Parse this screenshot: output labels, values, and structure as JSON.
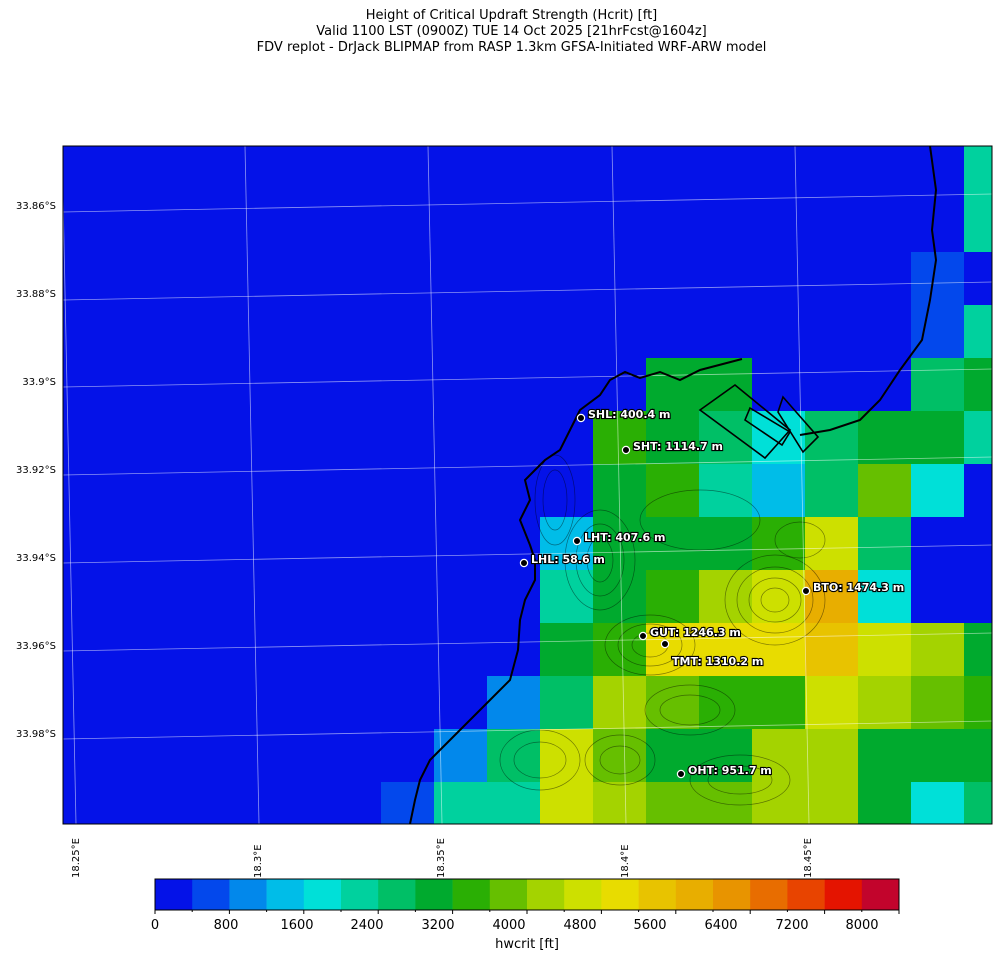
{
  "titles": {
    "line1": "Height of Critical Updraft Strength (Hcrit) [ft]",
    "line2": "Valid 1100 LST (0900Z) TUE 14 Oct 2025 [21hrFcst@1604z]",
    "line3": "FDV replot - DrJack BLIPMAP from RASP 1.3km GFSA-Initiated WRF-ARW model"
  },
  "axes": {
    "lat_labels": [
      "33.86°S",
      "33.88°S",
      "33.9°S",
      "33.92°S",
      "33.94°S",
      "33.96°S",
      "33.98°S"
    ],
    "lon_labels": [
      "18.25°E",
      "18.3°E",
      "18.35°E",
      "18.4°E",
      "18.45°E"
    ]
  },
  "colorbar": {
    "label": "hwcrit [ft]",
    "tick_labels": [
      "0",
      "800",
      "1600",
      "2400",
      "3200",
      "4000",
      "4800",
      "5600",
      "6400",
      "7200",
      "8000"
    ],
    "colors": [
      "#0412e8",
      "#0348ec",
      "#0288eb",
      "#00bde8",
      "#00e0d8",
      "#00d19e",
      "#00bf66",
      "#00aa2e",
      "#2aaf04",
      "#66bf00",
      "#a4d300",
      "#cde000",
      "#e8dc00",
      "#e8c300",
      "#e8ae00",
      "#e89400",
      "#e86d00",
      "#e84400",
      "#e41400",
      "#c2042c"
    ]
  },
  "stations": [
    {
      "label": "SHL: 400.4 m"
    },
    {
      "label": "SHT: 1114.7 m"
    },
    {
      "label": "LHT: 407.6 m"
    },
    {
      "label": "LHL: 58.6 m"
    },
    {
      "label": "BTO: 1474.3 m"
    },
    {
      "label": "GUT: 1246.3 m"
    },
    {
      "label": "TMT: 1310.2 m"
    },
    {
      "label": "OHT: 951.7 m"
    }
  ],
  "chart_data": {
    "type": "heatmap",
    "variable": "hwcrit [ft]",
    "color_levels_ft": [
      0,
      400,
      800,
      1200,
      1600,
      2000,
      2400,
      2800,
      3200,
      3600,
      4000,
      4400,
      4800,
      5200,
      5600,
      6000,
      6400,
      6800,
      7200,
      7600,
      8000
    ],
    "grid_cells_level_index": [
      [
        0,
        0,
        0,
        0,
        0,
        0,
        0,
        0,
        0,
        0,
        0,
        0,
        0,
        0,
        0,
        0,
        0,
        5,
        5
      ],
      [
        0,
        0,
        0,
        0,
        0,
        0,
        0,
        0,
        0,
        0,
        0,
        0,
        0,
        0,
        0,
        0,
        0,
        5,
        5
      ],
      [
        0,
        0,
        0,
        0,
        0,
        0,
        0,
        0,
        0,
        0,
        0,
        0,
        0,
        0,
        0,
        0,
        1,
        0,
        0
      ],
      [
        0,
        0,
        0,
        0,
        0,
        0,
        0,
        0,
        0,
        0,
        0,
        0,
        0,
        0,
        0,
        0,
        1,
        5,
        5
      ],
      [
        0,
        0,
        0,
        0,
        0,
        0,
        0,
        0,
        0,
        0,
        0,
        7,
        7,
        0,
        0,
        0,
        6,
        7,
        7
      ],
      [
        0,
        0,
        0,
        0,
        0,
        0,
        0,
        0,
        0,
        0,
        8,
        7,
        6,
        4,
        6,
        7,
        7,
        5,
        5
      ],
      [
        0,
        0,
        0,
        0,
        0,
        0,
        0,
        0,
        0,
        0,
        7,
        8,
        5,
        3,
        6,
        9,
        4,
        0,
        0
      ],
      [
        0,
        0,
        0,
        0,
        0,
        0,
        0,
        0,
        0,
        3,
        7,
        7,
        7,
        8,
        11,
        6,
        0,
        0,
        0
      ],
      [
        0,
        0,
        0,
        0,
        0,
        0,
        0,
        0,
        0,
        5,
        7,
        8,
        10,
        11,
        14,
        4,
        0,
        0,
        0
      ],
      [
        0,
        0,
        0,
        0,
        0,
        0,
        0,
        0,
        0,
        7,
        8,
        12,
        12,
        12,
        13,
        11,
        10,
        7,
        7
      ],
      [
        0,
        0,
        0,
        0,
        0,
        0,
        0,
        0,
        2,
        6,
        10,
        9,
        8,
        8,
        11,
        10,
        9,
        8,
        8
      ],
      [
        0,
        0,
        0,
        0,
        0,
        0,
        0,
        2,
        6,
        11,
        9,
        7,
        7,
        10,
        10,
        7,
        7,
        7,
        7
      ],
      [
        0,
        0,
        0,
        0,
        0,
        0,
        1,
        5,
        5,
        11,
        10,
        9,
        9,
        10,
        10,
        7,
        4,
        6,
        6
      ]
    ]
  }
}
